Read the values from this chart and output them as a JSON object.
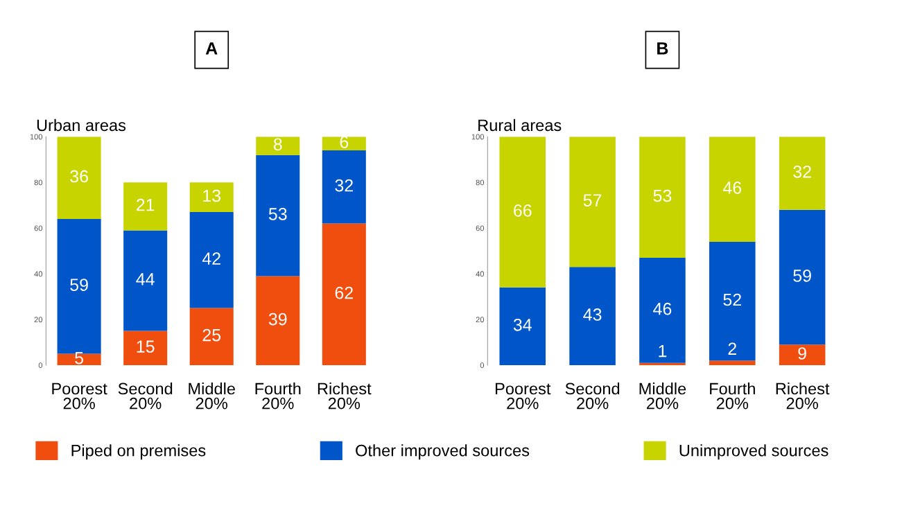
{
  "chart_data": [
    {
      "type": "bar",
      "stacked": true,
      "title": "Urban areas",
      "annotations": [
        "A"
      ],
      "categories": [
        "Poorest\n20%",
        "Second\n20%",
        "Middle\n20%",
        "Fourth\n20%",
        "Richest\n20%"
      ],
      "series": [
        {
          "name": "Piped on premises",
          "color": "#f04e0f",
          "values": [
            5,
            15,
            25,
            39,
            62
          ]
        },
        {
          "name": "Other improved sources",
          "color": "#0055c8",
          "values": [
            59,
            44,
            42,
            53,
            32
          ]
        },
        {
          "name": "Unimproved sources",
          "color": "#c8d400",
          "values": [
            36,
            21,
            13,
            8,
            6
          ]
        }
      ],
      "ylim": [
        0,
        100
      ],
      "yticks": [
        0,
        20,
        40,
        60,
        80,
        100
      ],
      "data_labels": true,
      "legend": "bottom"
    },
    {
      "type": "bar",
      "stacked": true,
      "title": "Rural areas",
      "annotations": [
        "B"
      ],
      "categories": [
        "Poorest\n20%",
        "Second\n20%",
        "Middle\n20%",
        "Fourth\n20%",
        "Richest\n20%"
      ],
      "series": [
        {
          "color": "#f04e0f",
          "values": [
            0,
            0,
            1,
            2,
            9
          ],
          "value_labels": [
            null,
            null,
            "1",
            "2",
            "9"
          ]
        },
        {
          "color": "#0055c8",
          "values": [
            34,
            43,
            46,
            52,
            59
          ],
          "value_labels": [
            "34",
            "43",
            "46",
            "52",
            "59"
          ]
        },
        {
          "color": "#c8d400",
          "values": [
            66,
            57,
            53,
            46,
            32
          ],
          "value_labels": [
            "66",
            "57",
            "53",
            "46",
            "32"
          ]
        }
      ],
      "ylim": [
        0,
        100
      ],
      "yticks": [
        0,
        20,
        40,
        60,
        80,
        100
      ]
    }
  ]
}
